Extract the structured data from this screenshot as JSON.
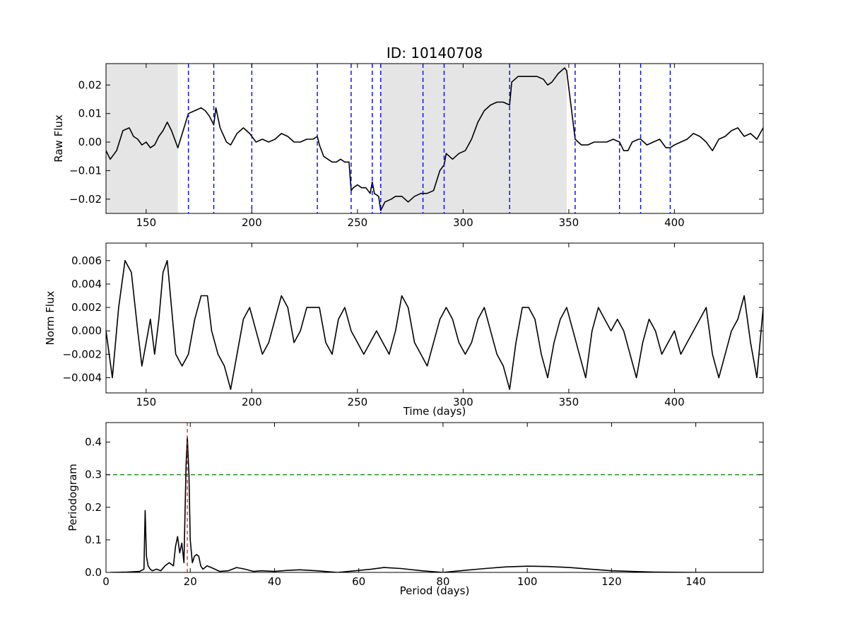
{
  "figure": {
    "title": "ID: 10140708"
  },
  "chart_data": [
    {
      "type": "line",
      "panel": "top",
      "title": "ID: 10140708",
      "xlabel": "",
      "ylabel": "Raw Flux",
      "xlim": [
        131,
        442
      ],
      "ylim": [
        -0.025,
        0.0275
      ],
      "xticks": [
        150,
        200,
        250,
        300,
        350,
        400
      ],
      "yticks": [
        -0.02,
        -0.01,
        0.0,
        0.01,
        0.02
      ],
      "ytick_labels": [
        "−0.02",
        "−0.01",
        "0.00",
        "0.01",
        "0.02"
      ],
      "grid": false,
      "shaded_regions": [
        [
          131,
          165
        ],
        [
          261,
          349
        ]
      ],
      "quarter_boundaries": [
        170,
        182,
        200,
        231,
        247,
        257,
        261,
        281,
        291,
        322,
        353,
        374,
        384,
        398
      ],
      "series": [
        {
          "color": "#000000",
          "x": [
            131,
            133,
            136,
            139,
            142,
            144,
            146,
            148,
            150,
            152,
            154,
            156,
            158,
            160,
            162,
            164,
            165,
            170,
            173,
            176,
            178,
            180,
            182,
            183,
            185,
            188,
            190,
            193,
            196,
            199,
            202,
            205,
            208,
            211,
            214,
            217,
            220,
            223,
            226,
            229,
            231,
            232,
            234,
            236,
            238,
            240,
            242,
            244,
            246,
            247,
            248,
            250,
            252,
            254,
            256,
            257,
            258,
            260,
            261,
            263,
            266,
            268,
            271,
            274,
            277,
            280,
            281,
            283,
            286,
            289,
            291,
            292,
            295,
            298,
            301,
            304,
            307,
            310,
            313,
            316,
            319,
            322,
            323,
            326,
            329,
            332,
            335,
            338,
            340,
            342,
            345,
            348,
            349,
            353,
            356,
            359,
            362,
            365,
            368,
            371,
            374,
            376,
            378,
            380,
            383,
            384,
            387,
            390,
            393,
            396,
            398,
            400,
            403,
            406,
            409,
            412,
            415,
            418,
            421,
            424,
            427,
            430,
            433,
            436,
            439,
            442
          ],
          "y": [
            -0.003,
            -0.006,
            -0.003,
            0.004,
            0.005,
            0.002,
            0.001,
            -0.001,
            0.0,
            -0.002,
            -0.001,
            0.002,
            0.004,
            0.007,
            0.004,
            0.0,
            -0.002,
            0.01,
            0.011,
            0.012,
            0.011,
            0.009,
            0.006,
            0.012,
            0.005,
            0.0,
            -0.001,
            0.003,
            0.005,
            0.003,
            0.0,
            0.001,
            0.0,
            0.001,
            0.003,
            0.002,
            0.0,
            0.0,
            0.001,
            0.001,
            0.002,
            -0.001,
            -0.005,
            -0.006,
            -0.007,
            -0.007,
            -0.006,
            -0.007,
            -0.007,
            -0.017,
            -0.016,
            -0.015,
            -0.016,
            -0.016,
            -0.018,
            -0.014,
            -0.018,
            -0.019,
            -0.024,
            -0.021,
            -0.02,
            -0.019,
            -0.019,
            -0.021,
            -0.019,
            -0.018,
            -0.018,
            -0.018,
            -0.017,
            -0.01,
            -0.008,
            -0.004,
            -0.006,
            -0.004,
            -0.003,
            0.001,
            0.007,
            0.011,
            0.013,
            0.014,
            0.014,
            0.013,
            0.021,
            0.023,
            0.023,
            0.023,
            0.023,
            0.022,
            0.02,
            0.021,
            0.024,
            0.026,
            0.025,
            0.001,
            -0.001,
            -0.001,
            0.0,
            0.0,
            0.0,
            0.001,
            0.0,
            -0.003,
            -0.003,
            0.0,
            0.001,
            0.001,
            -0.001,
            0.0,
            0.001,
            -0.002,
            -0.002,
            -0.001,
            0.0,
            0.001,
            0.003,
            0.002,
            0.0,
            -0.003,
            0.001,
            0.002,
            0.004,
            0.005,
            0.002,
            0.003,
            0.001,
            0.005
          ]
        }
      ]
    },
    {
      "type": "line",
      "panel": "middle",
      "xlabel": "Time (days)",
      "ylabel": "Norm Flux",
      "xlim": [
        131,
        442
      ],
      "ylim": [
        -0.0053,
        0.0075
      ],
      "xticks": [
        150,
        200,
        250,
        300,
        350,
        400
      ],
      "yticks": [
        -0.004,
        -0.002,
        0.0,
        0.002,
        0.004,
        0.006
      ],
      "ytick_labels": [
        "−0.004",
        "−0.002",
        "0.000",
        "0.002",
        "0.004",
        "0.006"
      ],
      "grid": false,
      "series": [
        {
          "color": "#000000",
          "x": [
            131,
            134,
            137,
            140,
            143,
            146,
            148,
            150,
            152,
            154,
            156,
            158,
            160,
            162,
            164,
            167,
            170,
            173,
            176,
            179,
            181,
            184,
            187,
            190,
            193,
            196,
            199,
            202,
            205,
            208,
            211,
            214,
            217,
            220,
            223,
            226,
            229,
            232,
            235,
            238,
            241,
            244,
            247,
            250,
            253,
            256,
            259,
            262,
            265,
            268,
            271,
            274,
            277,
            280,
            283,
            286,
            289,
            292,
            295,
            298,
            301,
            304,
            307,
            310,
            313,
            316,
            319,
            322,
            325,
            328,
            331,
            334,
            337,
            340,
            343,
            346,
            349,
            352,
            355,
            358,
            361,
            364,
            367,
            370,
            373,
            376,
            379,
            382,
            385,
            388,
            391,
            394,
            397,
            400,
            403,
            406,
            409,
            412,
            415,
            418,
            421,
            424,
            427,
            430,
            433,
            436,
            439,
            442
          ],
          "y": [
            0.0,
            -0.004,
            0.002,
            0.006,
            0.005,
            0.0,
            -0.003,
            -0.001,
            0.001,
            -0.002,
            0.001,
            0.005,
            0.006,
            0.002,
            -0.002,
            -0.003,
            -0.002,
            0.001,
            0.003,
            0.003,
            0.0,
            -0.002,
            -0.003,
            -0.005,
            -0.002,
            0.001,
            0.002,
            0.0,
            -0.002,
            -0.001,
            0.001,
            0.003,
            0.002,
            -0.001,
            0.0,
            0.002,
            0.002,
            0.002,
            -0.001,
            -0.002,
            0.001,
            0.002,
            0.0,
            -0.001,
            -0.002,
            -0.001,
            0.0,
            -0.001,
            -0.002,
            0.0,
            0.003,
            0.002,
            -0.001,
            -0.002,
            -0.003,
            -0.001,
            0.001,
            0.002,
            0.001,
            -0.001,
            -0.002,
            -0.001,
            0.001,
            0.002,
            0.0,
            -0.002,
            -0.003,
            -0.005,
            -0.001,
            0.002,
            0.002,
            0.001,
            -0.002,
            -0.004,
            -0.001,
            0.001,
            0.002,
            0.0,
            -0.002,
            -0.004,
            0.0,
            0.002,
            0.001,
            0.0,
            0.001,
            0.0,
            -0.002,
            -0.004,
            -0.001,
            0.001,
            0.0,
            -0.002,
            -0.001,
            0.0,
            -0.002,
            -0.001,
            0.0,
            0.001,
            0.002,
            -0.002,
            -0.004,
            -0.002,
            0.0,
            0.001,
            0.003,
            -0.001,
            -0.004,
            0.002
          ]
        }
      ]
    },
    {
      "type": "line",
      "panel": "bottom",
      "xlabel": "Period (days)",
      "ylabel": "Periodogram",
      "xlim": [
        0,
        156
      ],
      "ylim": [
        0,
        0.46
      ],
      "xticks": [
        0,
        20,
        40,
        60,
        80,
        100,
        120,
        140
      ],
      "yticks": [
        0.0,
        0.1,
        0.2,
        0.3,
        0.4
      ],
      "ytick_labels": [
        "0.0",
        "0.1",
        "0.2",
        "0.3",
        "0.4"
      ],
      "grid": false,
      "threshold": {
        "value": 0.3,
        "color": "#008000",
        "style": "dashed"
      },
      "peak_marker": {
        "period": 19.3,
        "color": "#ff0000",
        "style": "dashed"
      },
      "series": [
        {
          "color": "#000000",
          "x": [
            1,
            5,
            8,
            9,
            9.3,
            9.6,
            10,
            10.5,
            11,
            12,
            13,
            14,
            15,
            16,
            16.5,
            17,
            17.5,
            18,
            18.5,
            19,
            19.3,
            19.7,
            20,
            20.5,
            21,
            21.5,
            22,
            22.5,
            23,
            24,
            25,
            27,
            29,
            31,
            33,
            35,
            37,
            40,
            43,
            46,
            50,
            55,
            60,
            63,
            66,
            70,
            75,
            80,
            85,
            90,
            95,
            100,
            105,
            110,
            115,
            120,
            130,
            140,
            156
          ],
          "y": [
            0.0,
            0.001,
            0.003,
            0.01,
            0.19,
            0.05,
            0.02,
            0.01,
            0.005,
            0.01,
            0.005,
            0.02,
            0.03,
            0.02,
            0.08,
            0.11,
            0.06,
            0.09,
            0.03,
            0.33,
            0.415,
            0.3,
            0.1,
            0.03,
            0.05,
            0.055,
            0.05,
            0.02,
            0.01,
            0.02,
            0.015,
            0.003,
            0.005,
            0.015,
            0.01,
            0.003,
            0.005,
            0.003,
            0.006,
            0.008,
            0.005,
            0.0,
            0.006,
            0.01,
            0.015,
            0.012,
            0.005,
            0.0,
            0.006,
            0.012,
            0.017,
            0.019,
            0.018,
            0.015,
            0.01,
            0.005,
            0.001,
            0.0,
            0.0
          ]
        }
      ]
    }
  ]
}
